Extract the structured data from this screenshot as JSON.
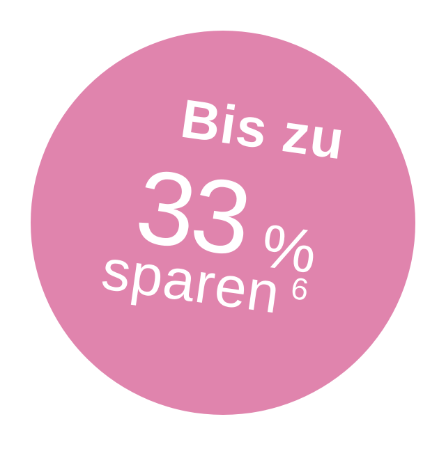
{
  "badge": {
    "background_color": "#e084ad",
    "text_color": "#ffffff",
    "line1": "Bis zu",
    "number": "33",
    "percent_sign": "%",
    "line3": "sparen",
    "footnote": "6"
  }
}
